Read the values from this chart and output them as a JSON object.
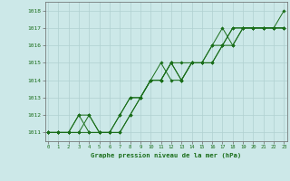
{
  "title": "Graphe pression niveau de la mer (hPa)",
  "background_color": "#cce8e8",
  "plot_bg_color": "#cce8e8",
  "grid_color": "#b0d0d0",
  "line_color": "#1a6e1a",
  "marker_color": "#1a6e1a",
  "xlim": [
    -0.3,
    23.3
  ],
  "ylim": [
    1010.5,
    1018.5
  ],
  "xticks": [
    0,
    1,
    2,
    3,
    4,
    5,
    6,
    7,
    8,
    9,
    10,
    11,
    12,
    13,
    14,
    15,
    16,
    17,
    18,
    19,
    20,
    21,
    22,
    23
  ],
  "yticks": [
    1011,
    1012,
    1013,
    1014,
    1015,
    1016,
    1017,
    1018
  ],
  "series": [
    [
      1011,
      1011,
      1011,
      1012,
      1011,
      1011,
      1011,
      1012,
      1013,
      1013,
      1014,
      1015,
      1014,
      1014,
      1015,
      1015,
      1016,
      1017,
      1016,
      1017,
      1017,
      1017,
      1017,
      1018
    ],
    [
      1011,
      1011,
      1011,
      1012,
      1012,
      1011,
      1011,
      1011,
      1012,
      1013,
      1014,
      1014,
      1015,
      1014,
      1015,
      1015,
      1016,
      1016,
      1017,
      1017,
      1017,
      1017,
      1017,
      1017
    ],
    [
      1011,
      1011,
      1011,
      1011,
      1012,
      1011,
      1011,
      1012,
      1013,
      1013,
      1014,
      1014,
      1015,
      1014,
      1015,
      1015,
      1015,
      1016,
      1016,
      1017,
      1017,
      1017,
      1017,
      1017
    ],
    [
      1011,
      1011,
      1011,
      1011,
      1011,
      1011,
      1011,
      1011,
      1012,
      1013,
      1014,
      1014,
      1015,
      1015,
      1015,
      1015,
      1015,
      1016,
      1017,
      1017,
      1017,
      1017,
      1017,
      1017
    ]
  ]
}
